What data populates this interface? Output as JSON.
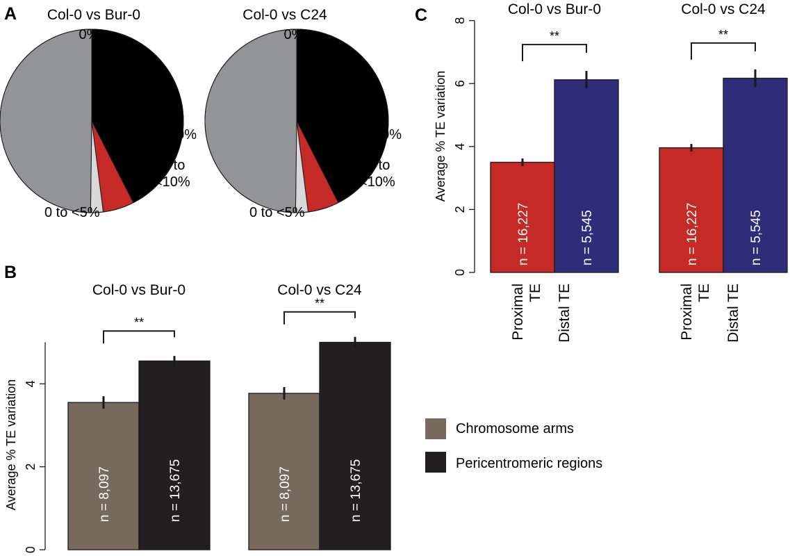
{
  "panels": {
    "a": "A",
    "b": "B",
    "c": "C"
  },
  "chart_data": [
    {
      "id": "A1",
      "type": "pie",
      "title": "Col-0 vs Bur-0",
      "slices": [
        {
          "label": "0%",
          "value": 42.5,
          "color": "#000000"
        },
        {
          "label": "≥10%",
          "value": 5.5,
          "color": "#c62a26"
        },
        {
          "label": "5≤ to\n<10%",
          "value": 2.2,
          "color": "#d9d9d9"
        },
        {
          "label": "0 to <5%",
          "value": 49.8,
          "color": "#929497"
        }
      ]
    },
    {
      "id": "A2",
      "type": "pie",
      "title": "Col-0 vs C24",
      "slices": [
        {
          "label": "0%",
          "value": 42.5,
          "color": "#000000"
        },
        {
          "label": "≥10%",
          "value": 5.5,
          "color": "#c62a26"
        },
        {
          "label": "5≤ to\n<10%",
          "value": 2.2,
          "color": "#d9d9d9"
        },
        {
          "label": "0 to <5%",
          "value": 49.8,
          "color": "#929497"
        }
      ]
    },
    {
      "id": "B",
      "type": "bar",
      "ylabel": "Average % TE variation",
      "ylim": [
        0,
        5
      ],
      "yticks": [
        0,
        2,
        4
      ],
      "groups": [
        {
          "title": "Col-0 vs Bur-0",
          "significance": "**",
          "bars": [
            {
              "series": "Chromosome arms",
              "value": 3.55,
              "error": 0.15,
              "n_label": "n = 8,097"
            },
            {
              "series": "Pericentromeric regions",
              "value": 4.55,
              "error": 0.12,
              "n_label": "n = 13,675"
            }
          ]
        },
        {
          "title": "Col-0 vs C24",
          "significance": "**",
          "bars": [
            {
              "series": "Chromosome arms",
              "value": 3.77,
              "error": 0.15,
              "n_label": "n = 8,097"
            },
            {
              "series": "Pericentromeric regions",
              "value": 5.0,
              "error": 0.13,
              "n_label": "n = 13,675"
            }
          ]
        }
      ],
      "legend": [
        {
          "name": "Chromosome arms",
          "color": "#776a5d"
        },
        {
          "name": "Pericentromeric regions",
          "color": "#231f20"
        }
      ]
    },
    {
      "id": "C",
      "type": "bar",
      "ylabel": "Average % TE variation",
      "ylim": [
        0,
        8
      ],
      "yticks": [
        0,
        2,
        4,
        6,
        8
      ],
      "categories": [
        "Proximal\nTE",
        "Distal TE"
      ],
      "groups": [
        {
          "title": "Col-0 vs Bur-0",
          "significance": "**",
          "bars": [
            {
              "category": "Proximal\nTE",
              "value": 3.5,
              "error": 0.12,
              "n_label": "n = 16,227",
              "color": "#c62a26"
            },
            {
              "category": "Distal TE",
              "value": 6.12,
              "error": 0.28,
              "n_label": "n = 5,545",
              "color": "#2e2d7a"
            }
          ]
        },
        {
          "title": "Col-0 vs C24",
          "significance": "**",
          "bars": [
            {
              "category": "Proximal\nTE",
              "value": 3.96,
              "error": 0.12,
              "n_label": "n = 16,227",
              "color": "#c62a26"
            },
            {
              "category": "Distal TE",
              "value": 6.17,
              "error": 0.28,
              "n_label": "n = 5,545",
              "color": "#2e2d7a"
            }
          ]
        }
      ]
    }
  ]
}
